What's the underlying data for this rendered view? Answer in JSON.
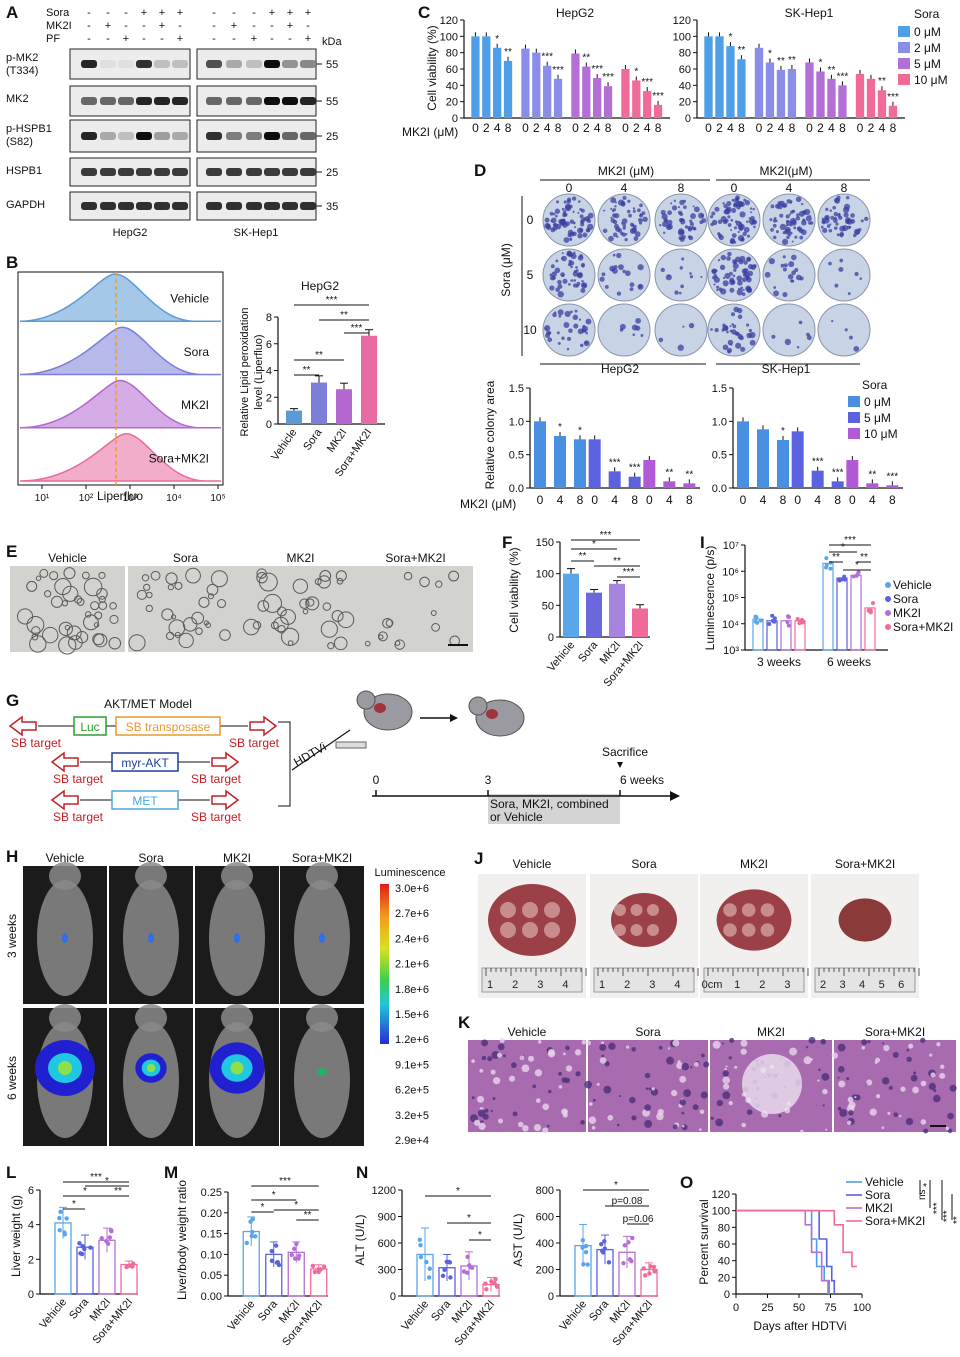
{
  "panels": {
    "A": {
      "letter": "A",
      "treat_rows": [
        "Sora",
        "MK2I",
        "PF"
      ],
      "signs": [
        [
          "-",
          "-",
          "-",
          "+",
          "+",
          "+"
        ],
        [
          "-",
          "+",
          "-",
          "-",
          "+",
          "-"
        ],
        [
          "-",
          "-",
          "+",
          "-",
          "-",
          "+"
        ]
      ],
      "kda": "kDa",
      "blots": [
        {
          "label": "p-MK2\n(T334)",
          "marker": "55",
          "hep": [
            0.9,
            0.05,
            0.05,
            0.85,
            0.2,
            0.2
          ],
          "sk": [
            0.7,
            0.3,
            0.2,
            1.0,
            0.4,
            0.45
          ]
        },
        {
          "label": "MK2",
          "marker": "55",
          "hep": [
            0.6,
            0.6,
            0.6,
            0.9,
            0.9,
            0.9
          ],
          "sk": [
            0.6,
            0.6,
            0.6,
            1.0,
            1.0,
            0.9
          ]
        },
        {
          "label": "p-HSPB1\n(S82)",
          "marker": "25",
          "hep": [
            0.9,
            0.3,
            0.2,
            1.0,
            0.35,
            0.3
          ],
          "sk": [
            0.85,
            0.5,
            0.5,
            1.0,
            0.6,
            0.6
          ]
        },
        {
          "label": "HSPB1",
          "marker": "25",
          "hep": [
            0.8,
            0.8,
            0.8,
            0.8,
            0.8,
            0.8
          ],
          "sk": [
            0.8,
            0.8,
            0.8,
            0.8,
            0.8,
            0.8
          ]
        },
        {
          "label": "GAPDH",
          "marker": "35",
          "hep": [
            0.85,
            0.85,
            0.85,
            0.85,
            0.85,
            0.85
          ],
          "sk": [
            0.85,
            0.85,
            0.85,
            0.85,
            0.85,
            0.85
          ]
        }
      ],
      "cell_lines": [
        "HepG2",
        "SK-Hep1"
      ]
    },
    "B": {
      "letter": "B",
      "flow_groups": [
        "Vehicle",
        "Sora",
        "MK2I",
        "Sora+MK2I"
      ],
      "flow_colors": [
        "#5b9bd5",
        "#7b7fd8",
        "#b367cf",
        "#e86aa0"
      ],
      "xlabel": "Liperfluo",
      "xticks": [
        "10¹",
        "10²",
        "10³",
        "10⁴",
        "10⁵"
      ],
      "bar_title": "HepG2",
      "ylabel": "Relative Lipid peroxidation\nlevel (Liperfluo)",
      "sig": [
        "**",
        "**",
        "***",
        "**",
        "***"
      ]
    },
    "C": {
      "letter": "C",
      "ylabel": "Cell viability (%)",
      "xlabel": "MK2I (μM)",
      "legend_title": "Sora",
      "legend": [
        "0 μM",
        "2 μM",
        "5 μM",
        "10 μM"
      ],
      "colors": [
        "#4f9fe8",
        "#8b8ee8",
        "#b46fd6",
        "#f06a9a"
      ]
    },
    "D": {
      "letter": "D",
      "mk2i_header": [
        "MK2I (μM)",
        "MK2I(μM)"
      ],
      "doses": [
        "0",
        "4",
        "8"
      ],
      "sora_label": "Sora (μM)",
      "sora_doses": [
        "0",
        "5",
        "10"
      ],
      "cell_lines": [
        "HepG2",
        "SK-Hep1"
      ],
      "ylabel": "Relative colony area",
      "xlabel": "MK2I (μM)",
      "legend_title": "Sora",
      "legend": [
        "0 μM",
        "5 μM",
        "10 μM"
      ],
      "colors": [
        "#4a90e2",
        "#5b62e0",
        "#b15ad8"
      ]
    },
    "E": {
      "letter": "E",
      "groups": [
        "Vehicle",
        "Sora",
        "MK2I",
        "Sora+MK2I"
      ]
    },
    "F": {
      "letter": "F",
      "ylabel": "Cell viability (%)",
      "categories": [
        "Vehicle",
        "Sora",
        "MK2I",
        "Sora+MK2I"
      ],
      "sig": [
        "***",
        "*",
        "**",
        "**",
        "***"
      ]
    },
    "G": {
      "letter": "G",
      "model_title": "AKT/MET Model",
      "sb_target": "SB target",
      "genes": [
        "Luc",
        "SB transposase",
        "myr-AKT",
        "MET"
      ],
      "hdtvi": "HDTVi",
      "timeline": [
        "0",
        "3",
        "6 weeks"
      ],
      "sacrifice": "Sacrifice",
      "treatment": "Sora, MK2I, combined\nor Vehicle"
    },
    "H": {
      "letter": "H",
      "groups": [
        "Vehicle",
        "Sora",
        "MK2I",
        "Sora+MK2I"
      ],
      "rows": [
        "3 weeks",
        "6 weeks"
      ],
      "scale_title": "Luminescence",
      "scale": [
        "3.0e+6",
        "2.7e+6",
        "2.4e+6",
        "2.1e+6",
        "1.8e+6",
        "1.5e+6",
        "1.2e+6",
        "9.1e+5",
        "6.2e+5",
        "3.2e+5",
        "2.9e+4"
      ]
    },
    "I": {
      "letter": "I",
      "ylabel": "Luminescence (p/s)",
      "yticks": [
        "10³",
        "10⁴",
        "10⁵",
        "10⁶",
        "10⁷"
      ],
      "legend": [
        "Vehicle",
        "Sora",
        "MK2I",
        "Sora+MK2I"
      ],
      "sig": [
        "***",
        "*",
        "**",
        "**",
        "*"
      ]
    },
    "J": {
      "letter": "J",
      "groups": [
        "Vehicle",
        "Sora",
        "MK2I",
        "Sora+MK2I"
      ],
      "ruler_sets": [
        [
          "1",
          "2",
          "3",
          "4"
        ],
        [
          "1",
          "2",
          "3",
          "4"
        ],
        [
          "0cm",
          "1",
          "2",
          "3"
        ],
        [
          "2",
          "3",
          "4",
          "5",
          "6"
        ]
      ]
    },
    "K": {
      "letter": "K",
      "groups": [
        "Vehicle",
        "Sora",
        "MK2I",
        "Sora+MK2I"
      ]
    },
    "L": {
      "letter": "L",
      "ylabel": "Liver weight (g)",
      "sig": [
        "*",
        "*",
        "***",
        "*",
        "**"
      ]
    },
    "M": {
      "letter": "M",
      "ylabel": "Liver/body weight ratio",
      "sig": [
        "*",
        "*",
        "***",
        "*",
        "**"
      ]
    },
    "N": {
      "letter": "N",
      "ylabel_alt": "ALT (U/L)",
      "ylabel_ast": "AST (U/L)",
      "sig_alt": [
        "*",
        "*",
        "*"
      ],
      "sig_ast": [
        "*",
        "p=0.08",
        "p=0.06"
      ]
    },
    "O": {
      "letter": "O",
      "ylabel": "Percent survival",
      "xlabel": "Days after HDTVi",
      "legend": [
        "Vehicle",
        "Sora",
        "MK2I",
        "Sora+MK2I"
      ],
      "sig": [
        "*",
        "ns",
        "***",
        "***",
        "**"
      ]
    }
  },
  "chart_data": [
    {
      "panel": "B",
      "type": "bar",
      "title": "HepG2",
      "ylabel": "Relative Lipid peroxidation level (Liperfluo)",
      "categories": [
        "Vehicle",
        "Sora",
        "MK2I",
        "Sora+MK2I"
      ],
      "values": [
        1.0,
        3.1,
        2.6,
        6.6
      ],
      "errors": [
        0.15,
        0.5,
        0.45,
        0.45
      ],
      "ylim": [
        0,
        8
      ],
      "yticks": [
        0,
        2,
        4,
        6,
        8
      ]
    },
    {
      "panel": "C-HepG2",
      "type": "bar",
      "title": "HepG2",
      "ylabel": "Cell viability (%)",
      "xlabel": "MK2I (μM)",
      "categories": [
        "0",
        "2",
        "4",
        "8"
      ],
      "ylim": [
        0,
        120
      ],
      "yticks": [
        0,
        20,
        40,
        60,
        80,
        100,
        120
      ],
      "series": [
        {
          "name": "0 μM",
          "values": [
            100,
            100,
            86,
            70
          ],
          "sig": [
            "",
            "",
            "*",
            "**"
          ]
        },
        {
          "name": "2 μM",
          "values": [
            85,
            80,
            64,
            48
          ],
          "sig": [
            "",
            "",
            "***",
            "***"
          ]
        },
        {
          "name": "5 μM",
          "values": [
            79,
            63,
            49,
            39
          ],
          "sig": [
            "",
            "**",
            "***",
            "***"
          ]
        },
        {
          "name": "10 μM",
          "values": [
            60,
            46,
            33,
            16
          ],
          "sig": [
            "",
            "*",
            "***",
            "***"
          ]
        }
      ]
    },
    {
      "panel": "C-SK-Hep1",
      "type": "bar",
      "title": "SK-Hep1",
      "ylabel": "Cell viability (%)",
      "xlabel": "MK2I (μM)",
      "categories": [
        "0",
        "2",
        "4",
        "8"
      ],
      "ylim": [
        0,
        120
      ],
      "yticks": [
        0,
        20,
        40,
        60,
        80,
        100,
        120
      ],
      "series": [
        {
          "name": "0 μM",
          "values": [
            100,
            100,
            88,
            72
          ],
          "sig": [
            "",
            "",
            "*",
            "**"
          ]
        },
        {
          "name": "2 μM",
          "values": [
            86,
            68,
            59,
            60
          ],
          "sig": [
            "",
            "*",
            "**",
            "**"
          ]
        },
        {
          "name": "5 μM",
          "values": [
            68,
            57,
            48,
            40
          ],
          "sig": [
            "",
            "*",
            "**",
            "***"
          ]
        },
        {
          "name": "10 μM",
          "values": [
            54,
            48,
            34,
            15
          ],
          "sig": [
            "",
            "",
            "**",
            "***"
          ]
        }
      ]
    },
    {
      "panel": "D-HepG2",
      "type": "bar",
      "title": "HepG2",
      "ylabel": "Relative colony area",
      "xlabel": "MK2I (μM)",
      "categories": [
        "0",
        "4",
        "8"
      ],
      "ylim": [
        0,
        1.5
      ],
      "yticks": [
        0,
        0.5,
        1.0,
        1.5
      ],
      "series": [
        {
          "name": "0 μM",
          "values": [
            1.0,
            0.78,
            0.73
          ],
          "sig": [
            "",
            "*",
            "*"
          ]
        },
        {
          "name": "5 μM",
          "values": [
            0.73,
            0.25,
            0.17
          ],
          "sig": [
            "",
            "***",
            "***"
          ]
        },
        {
          "name": "10 μM",
          "values": [
            0.42,
            0.1,
            0.07
          ],
          "sig": [
            "",
            "**",
            "**"
          ]
        }
      ]
    },
    {
      "panel": "D-SK-Hep1",
      "type": "bar",
      "title": "SK-Hep1",
      "ylabel": "Relative colony area",
      "xlabel": "MK2I (μM)",
      "categories": [
        "0",
        "4",
        "8"
      ],
      "ylim": [
        0,
        1.5
      ],
      "yticks": [
        0,
        0.5,
        1.0,
        1.5
      ],
      "series": [
        {
          "name": "0 μM",
          "values": [
            1.0,
            0.88,
            0.72
          ],
          "sig": [
            "",
            "",
            "*"
          ]
        },
        {
          "name": "5 μM",
          "values": [
            0.85,
            0.26,
            0.1
          ],
          "sig": [
            "",
            "***",
            "***"
          ]
        },
        {
          "name": "10 μM",
          "values": [
            0.42,
            0.07,
            0.04
          ],
          "sig": [
            "",
            "**",
            "***"
          ]
        }
      ]
    },
    {
      "panel": "F",
      "type": "bar",
      "ylabel": "Cell viability (%)",
      "categories": [
        "Vehicle",
        "Sora",
        "MK2I",
        "Sora+MK2I"
      ],
      "values": [
        100,
        70,
        84,
        45
      ],
      "errors": [
        8,
        5,
        5,
        6
      ],
      "ylim": [
        0,
        150
      ],
      "yticks": [
        0,
        50,
        100,
        150
      ]
    },
    {
      "panel": "I",
      "type": "scatter",
      "ylabel": "Luminescence (p/s)",
      "scale": "log",
      "categories": [
        "3 weeks",
        "6 weeks"
      ],
      "ylim": [
        1000,
        10000000
      ],
      "series": [
        {
          "name": "Vehicle",
          "means": [
            15000,
            2000000
          ]
        },
        {
          "name": "Sora",
          "means": [
            13000,
            550000
          ]
        },
        {
          "name": "MK2I",
          "means": [
            13000,
            700000
          ]
        },
        {
          "name": "Sora+MK2I",
          "means": [
            13000,
            40000
          ]
        }
      ]
    },
    {
      "panel": "L",
      "type": "bar",
      "ylabel": "Liver weight (g)",
      "categories": [
        "Vehicle",
        "Sora",
        "MK2I",
        "Sora+MK2I"
      ],
      "values": [
        4.1,
        2.7,
        3.1,
        1.7
      ],
      "errors": [
        0.9,
        0.7,
        0.7,
        0.2
      ],
      "ylim": [
        0,
        6
      ],
      "yticks": [
        0,
        2,
        4,
        6
      ]
    },
    {
      "panel": "M",
      "type": "bar",
      "ylabel": "Liver/body weight ratio",
      "categories": [
        "Vehicle",
        "Sora",
        "MK2I",
        "Sora+MK2I"
      ],
      "values": [
        0.155,
        0.1,
        0.105,
        0.065
      ],
      "errors": [
        0.035,
        0.03,
        0.025,
        0.01
      ],
      "ylim": [
        0,
        0.25
      ],
      "yticks": [
        0,
        0.05,
        0.1,
        0.15,
        0.2,
        0.25
      ]
    },
    {
      "panel": "N-ALT",
      "type": "bar",
      "ylabel": "ALT (U/L)",
      "categories": [
        "Vehicle",
        "Sora",
        "MK2I",
        "Sora+MK2I"
      ],
      "values": [
        470,
        320,
        340,
        130
      ],
      "errors": [
        300,
        150,
        160,
        80
      ],
      "ylim": [
        0,
        1200
      ],
      "yticks": [
        0,
        300,
        600,
        900,
        1200
      ]
    },
    {
      "panel": "N-AST",
      "type": "bar",
      "ylabel": "AST (U/L)",
      "categories": [
        "Vehicle",
        "Sora",
        "MK2I",
        "Sora+MK2I"
      ],
      "values": [
        380,
        350,
        330,
        200
      ],
      "errors": [
        160,
        110,
        120,
        50
      ],
      "ylim": [
        0,
        800
      ],
      "yticks": [
        0,
        200,
        400,
        600,
        800
      ]
    },
    {
      "panel": "O",
      "type": "line",
      "ylabel": "Percent survival",
      "xlabel": "Days after HDTVi",
      "xlim": [
        0,
        100
      ],
      "ylim": [
        0,
        120
      ],
      "xticks": [
        0,
        25,
        50,
        75,
        100
      ],
      "yticks": [
        0,
        20,
        40,
        60,
        80,
        100,
        120
      ],
      "series": [
        {
          "name": "Vehicle",
          "x": [
            0,
            60,
            60,
            64,
            64,
            70,
            70,
            73,
            73
          ],
          "y": [
            100,
            100,
            66,
            66,
            33,
            33,
            16,
            16,
            0
          ]
        },
        {
          "name": "Sora",
          "x": [
            0,
            66,
            66,
            72,
            72,
            76,
            76,
            78,
            78
          ],
          "y": [
            100,
            100,
            66,
            66,
            33,
            33,
            16,
            16,
            0
          ]
        },
        {
          "name": "MK2I",
          "x": [
            0,
            55,
            55,
            60,
            60,
            68,
            68,
            74,
            74
          ],
          "y": [
            100,
            100,
            83,
            83,
            50,
            50,
            16,
            16,
            0
          ]
        },
        {
          "name": "Sora+MK2I",
          "x": [
            0,
            78,
            78,
            85,
            85,
            92,
            92,
            96
          ],
          "y": [
            100,
            100,
            83,
            83,
            50,
            50,
            33,
            33
          ]
        }
      ]
    }
  ]
}
